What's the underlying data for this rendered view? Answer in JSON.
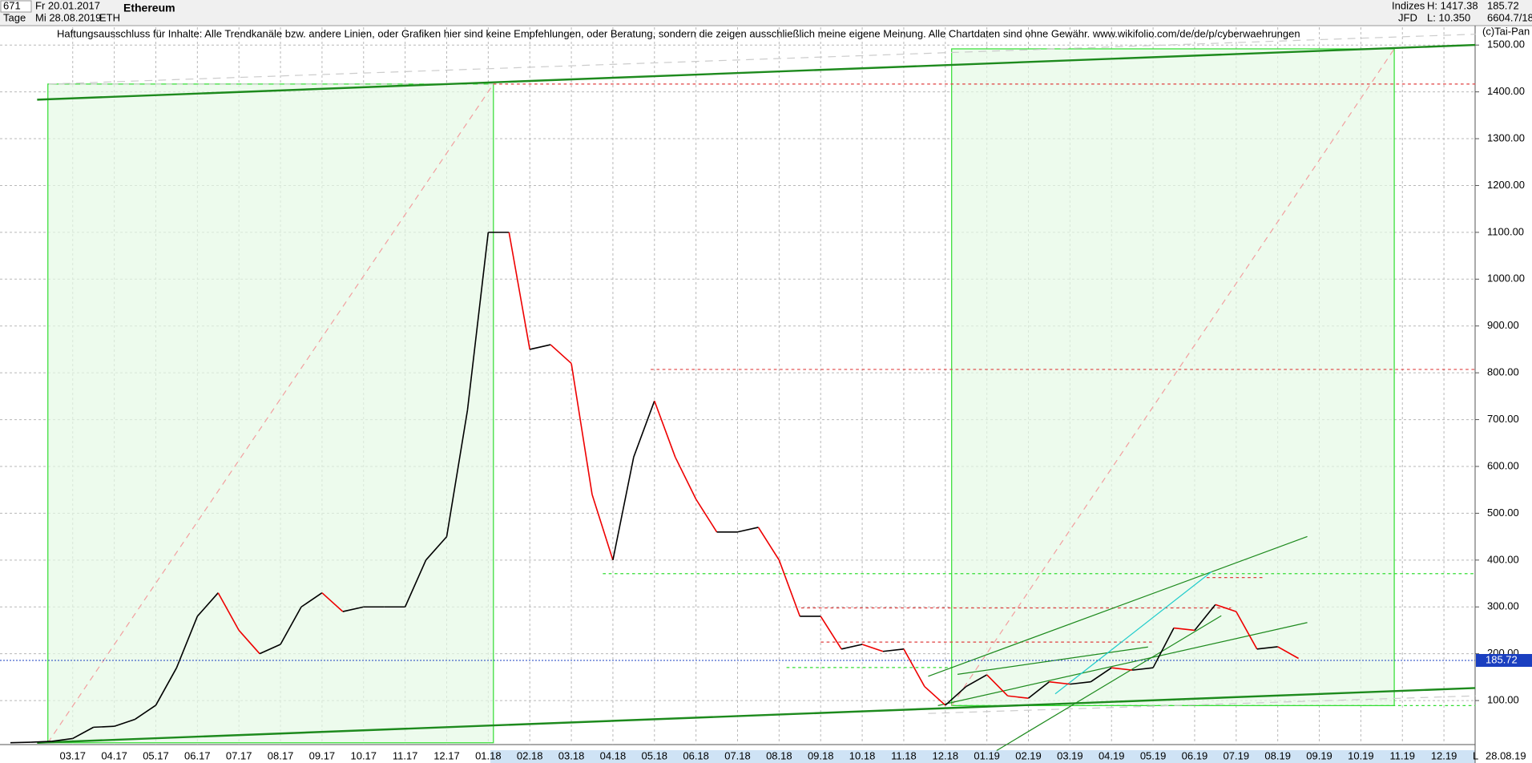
{
  "header": {
    "count": "671",
    "start_date": "Fr 20.01.2017",
    "period": "Tage",
    "end_date": "Mi 28.08.2019",
    "symbol": "ETH",
    "name": "Ethereum",
    "market": "Indizes",
    "broker": "JFD",
    "high": "H: 1417.38",
    "low": "L: 10.350",
    "last": "185.72",
    "ref": "6604.7/18",
    "disclaimer": "Haftungsausschluss für Inhalte: Alle Trendkanäle bzw. andere Linien, oder Grafiken hier sind keine Empfehlungen, oder Beratung, sondern die zeigen ausschließlich meine eigene Meinung. Alle Chartdaten sind ohne Gewähr.  www.wikifolio.com/de/de/p/cyberwaehrungen",
    "copyright": "(c)Tai-Pan",
    "axis_date": "28.08.19",
    "axis_mode": "L"
  },
  "chart_data": {
    "type": "line",
    "categories": [
      null,
      null,
      null,
      "03.17",
      null,
      "04.17",
      null,
      "05.17",
      null,
      "06.17",
      null,
      "07.17",
      null,
      "08.17",
      null,
      "09.17",
      null,
      "10.17",
      null,
      "11.17",
      null,
      "12.17",
      null,
      "01.18",
      null,
      "02.18",
      null,
      "03.18",
      null,
      "04.18",
      null,
      "05.18",
      null,
      "06.18",
      null,
      "07.18",
      null,
      "08.18",
      null,
      "09.18",
      null,
      "10.18",
      null,
      "11.18",
      null,
      "12.18",
      null,
      "01.19",
      null,
      "02.19",
      null,
      "03.19",
      null,
      "04.19",
      null,
      "05.19",
      null,
      "06.19",
      null,
      "07.19",
      null,
      "08.19",
      null,
      "09.19",
      null,
      "10.19",
      null,
      "11.19",
      null,
      "12.19",
      null
    ],
    "values": [
      10,
      11,
      13,
      19,
      43,
      45,
      60,
      90,
      170,
      280,
      330,
      250,
      200,
      220,
      300,
      330,
      290,
      300,
      300,
      300,
      400,
      450,
      720,
      1100,
      1100,
      850,
      860,
      820,
      540,
      400,
      620,
      740,
      620,
      530,
      460,
      460,
      470,
      400,
      280,
      280,
      210,
      220,
      205,
      210,
      130,
      90,
      130,
      155,
      110,
      105,
      140,
      135,
      140,
      170,
      165,
      170,
      255,
      250,
      305,
      290,
      210,
      215,
      190,
      null,
      null,
      null,
      null,
      null,
      null,
      null,
      null
    ],
    "up_color": "#000000",
    "down_color": "#ee0000",
    "last_value": 185.72,
    "last_color": "#1a3fc0",
    "ylim": [
      6,
      1538
    ],
    "yticks": [
      {
        "value": 100,
        "label": "100.00"
      },
      {
        "value": 200,
        "label": "200.00"
      },
      {
        "value": 300,
        "label": "300.00"
      },
      {
        "value": 400,
        "label": "400.00"
      },
      {
        "value": 500,
        "label": "500.00"
      },
      {
        "value": 600,
        "label": "600.00"
      },
      {
        "value": 700,
        "label": "700.00"
      },
      {
        "value": 800,
        "label": "800.00"
      },
      {
        "value": 900,
        "label": "900.00"
      },
      {
        "value": 1000,
        "label": "1000.00"
      },
      {
        "value": 1100,
        "label": "1100.00"
      },
      {
        "value": 1200,
        "label": "1200.00"
      },
      {
        "value": 1300,
        "label": "1300.00"
      },
      {
        "value": 1400,
        "label": "1400.00"
      },
      {
        "value": 1500,
        "label": "1500.00"
      }
    ],
    "grid": true
  }
}
